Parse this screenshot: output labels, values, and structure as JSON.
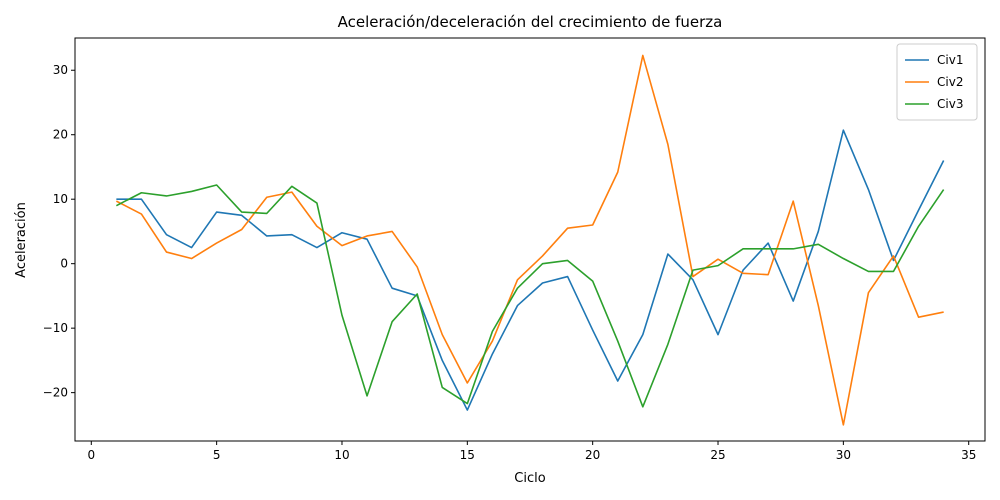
{
  "chart_data": {
    "type": "line",
    "title": "Aceleración/deceleración del crecimiento de fuerza",
    "xlabel": "Ciclo",
    "ylabel": "Aceleración",
    "xlim": [
      -0.65,
      35.65
    ],
    "ylim": [
      -27.5,
      35.0
    ],
    "xticks": [
      0,
      5,
      10,
      15,
      20,
      25,
      30,
      35
    ],
    "yticks": [
      -20,
      -10,
      0,
      10,
      20,
      30
    ],
    "legend_position": "top-right",
    "grid": false,
    "x": [
      1,
      2,
      3,
      4,
      5,
      6,
      7,
      8,
      9,
      10,
      11,
      12,
      13,
      14,
      15,
      16,
      17,
      18,
      19,
      20,
      21,
      22,
      23,
      24,
      25,
      26,
      27,
      28,
      29,
      30,
      31,
      32,
      33,
      34
    ],
    "series": [
      {
        "name": "Civ1",
        "color": "#1f77b4",
        "values": [
          10.0,
          10.0,
          4.5,
          2.5,
          8.0,
          7.5,
          4.3,
          4.5,
          2.5,
          4.8,
          3.8,
          -3.8,
          -5.0,
          -15.0,
          -22.7,
          -14.0,
          -6.5,
          -3.0,
          -2.0,
          -10.3,
          -18.2,
          -11.0,
          1.5,
          -2.5,
          -11.0,
          -1.0,
          3.2,
          -5.8,
          5.0,
          20.7,
          11.5,
          0.5,
          8.3,
          16.0
        ]
      },
      {
        "name": "Civ2",
        "color": "#ff7f0e",
        "values": [
          9.7,
          7.7,
          1.8,
          0.8,
          3.2,
          5.3,
          10.3,
          11.1,
          5.8,
          2.8,
          4.3,
          5.0,
          -0.5,
          -11.0,
          -18.5,
          -12.0,
          -2.5,
          1.2,
          5.5,
          6.0,
          14.2,
          32.3,
          18.5,
          -2.0,
          0.7,
          -1.5,
          -1.7,
          9.7,
          -6.5,
          -25.0,
          -4.5,
          1.2,
          -8.3,
          -7.5
        ]
      },
      {
        "name": "Civ3",
        "color": "#2ca02c",
        "values": [
          9.0,
          11.0,
          10.5,
          11.2,
          12.2,
          8.0,
          7.8,
          12.0,
          9.4,
          -8.0,
          -20.5,
          -9.0,
          -4.7,
          -19.2,
          -21.7,
          -10.5,
          -3.8,
          0.0,
          0.5,
          -2.7,
          -12.0,
          -22.2,
          -12.5,
          -1.0,
          -0.3,
          2.3,
          2.3,
          2.3,
          3.0,
          0.8,
          -1.2,
          -1.2,
          5.8,
          11.5
        ]
      }
    ]
  }
}
